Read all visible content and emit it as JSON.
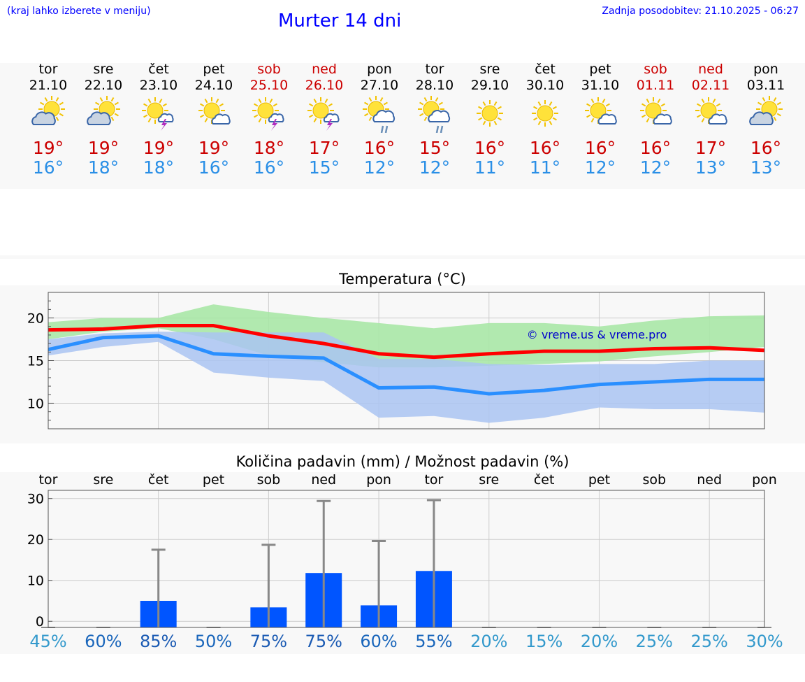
{
  "header": {
    "note": "(kraj lahko izberete v meniju)",
    "title": "Murter 14 dni",
    "updated": "Zadnja posodobitev: 21.10.2025 - 06:27"
  },
  "colors": {
    "max": "#ff0000",
    "min": "#2a8fff",
    "bars": "#0055ff",
    "maxband": "#a9e7a6",
    "minband": "#aac4f2",
    "overlap": "#7ec8a8"
  },
  "days": [
    {
      "name": "tor",
      "date": "21.10",
      "weekend": false,
      "icon": "sun-cloud-icon",
      "max": "19°",
      "min": "16°"
    },
    {
      "name": "sre",
      "date": "22.10",
      "weekend": false,
      "icon": "sun-cloud-icon",
      "max": "19°",
      "min": "18°"
    },
    {
      "name": "čet",
      "date": "23.10",
      "weekend": false,
      "icon": "sun-thunder-icon",
      "max": "19°",
      "min": "18°"
    },
    {
      "name": "pet",
      "date": "24.10",
      "weekend": false,
      "icon": "sun-small-cloud-icon",
      "max": "19°",
      "min": "16°"
    },
    {
      "name": "sob",
      "date": "25.10",
      "weekend": true,
      "icon": "sun-thunder-icon",
      "max": "18°",
      "min": "16°"
    },
    {
      "name": "ned",
      "date": "26.10",
      "weekend": true,
      "icon": "sun-thunder-icon",
      "max": "17°",
      "min": "15°"
    },
    {
      "name": "pon",
      "date": "27.10",
      "weekend": false,
      "icon": "sun-rain-icon",
      "max": "16°",
      "min": "12°"
    },
    {
      "name": "tor",
      "date": "28.10",
      "weekend": false,
      "icon": "sun-rain-icon",
      "max": "15°",
      "min": "12°"
    },
    {
      "name": "sre",
      "date": "29.10",
      "weekend": false,
      "icon": "sun-icon",
      "max": "16°",
      "min": "11°"
    },
    {
      "name": "čet",
      "date": "30.10",
      "weekend": false,
      "icon": "sun-icon",
      "max": "16°",
      "min": "11°"
    },
    {
      "name": "pet",
      "date": "31.10",
      "weekend": false,
      "icon": "sun-small-cloud-icon",
      "max": "16°",
      "min": "12°"
    },
    {
      "name": "sob",
      "date": "01.11",
      "weekend": true,
      "icon": "sun-small-cloud-icon",
      "max": "16°",
      "min": "12°"
    },
    {
      "name": "ned",
      "date": "02.11",
      "weekend": true,
      "icon": "sun-small-cloud-icon",
      "max": "17°",
      "min": "13°"
    },
    {
      "name": "pon",
      "date": "03.11",
      "weekend": false,
      "icon": "sun-cloud-icon",
      "max": "16°",
      "min": "13°"
    }
  ],
  "chart_data": [
    {
      "type": "line",
      "title": "Temperatura (°C)",
      "watermark": "© vreme.us & vreme.pro",
      "x_count": 14,
      "ylim": [
        7,
        23
      ],
      "yticks": [
        10,
        15,
        20
      ],
      "grid": true,
      "series": [
        {
          "key": "max",
          "values": [
            18.6,
            18.7,
            19.1,
            19.1,
            17.9,
            17.0,
            15.8,
            15.4,
            15.8,
            16.1,
            16.1,
            16.4,
            16.5,
            16.2
          ]
        },
        {
          "key": "min",
          "values": [
            16.3,
            17.7,
            17.9,
            15.8,
            15.5,
            15.3,
            11.8,
            11.9,
            11.1,
            11.5,
            12.2,
            12.5,
            12.8,
            12.8
          ]
        }
      ],
      "bands": [
        {
          "key": "max_range",
          "upper": [
            19.5,
            20.0,
            20.0,
            21.6,
            20.7,
            20.0,
            19.4,
            18.8,
            19.4,
            19.4,
            19.0,
            19.7,
            20.2,
            20.3
          ],
          "lower": [
            17.5,
            18.4,
            18.8,
            17.5,
            15.6,
            14.8,
            14.2,
            14.2,
            14.4,
            14.6,
            14.9,
            15.5,
            16.0,
            16.6
          ]
        },
        {
          "key": "min_range",
          "upper": [
            17.5,
            18.2,
            18.4,
            18.3,
            18.3,
            18.3,
            15.2,
            15.2,
            14.6,
            14.5,
            14.6,
            14.6,
            15.0,
            15.0
          ],
          "lower": [
            15.6,
            16.6,
            17.2,
            13.6,
            13.0,
            12.6,
            8.3,
            8.5,
            7.7,
            8.3,
            9.5,
            9.3,
            9.3,
            8.9
          ]
        }
      ]
    },
    {
      "type": "bar",
      "title": "Količina padavin (mm) / Možnost padavin (%)",
      "categories": [
        "tor",
        "sre",
        "čet",
        "pet",
        "sob",
        "ned",
        "pon",
        "tor",
        "sre",
        "čet",
        "pet",
        "sob",
        "ned",
        "pon"
      ],
      "ylim": [
        -1.5,
        32
      ],
      "yticks": [
        0,
        10,
        20,
        30
      ],
      "grid": true,
      "values": [
        0,
        0,
        5,
        0,
        3.4,
        11.8,
        3.9,
        12.3,
        0,
        0,
        0,
        0,
        0,
        0
      ],
      "error_max": [
        0,
        0,
        17.5,
        0,
        18.7,
        29.4,
        19.6,
        29.6,
        0,
        0,
        0,
        0,
        0,
        0
      ],
      "probability": [
        "45%",
        "60%",
        "85%",
        "50%",
        "75%",
        "75%",
        "60%",
        "55%",
        "20%",
        "15%",
        "20%",
        "25%",
        "25%",
        "30%"
      ],
      "probability_colors": [
        "#3399cc",
        "#1a66bb",
        "#1a5ab3",
        "#1a66bb",
        "#1a5ab3",
        "#1a5ab3",
        "#1a66bb",
        "#1a66bb",
        "#3399cc",
        "#3399cc",
        "#3399cc",
        "#3399cc",
        "#3399cc",
        "#3399cc"
      ]
    }
  ]
}
